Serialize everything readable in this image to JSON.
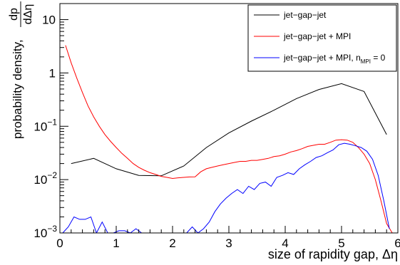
{
  "chart_data": {
    "type": "line",
    "xlabel": "size of rapidity gap, Δη",
    "ylabel_text": "probability density,",
    "ylabel_frac": {
      "num": "dp",
      "den": "dΔη"
    },
    "xlim": [
      0,
      6
    ],
    "ylim": [
      0.001,
      20
    ],
    "y_scale": "log",
    "grid": false,
    "legend_position": "top-right",
    "x_ticks": [
      {
        "value": 0,
        "label": "0"
      },
      {
        "value": 1,
        "label": "1"
      },
      {
        "value": 2,
        "label": "2"
      },
      {
        "value": 3,
        "label": "3"
      },
      {
        "value": 4,
        "label": "4"
      },
      {
        "value": 5,
        "label": "5"
      },
      {
        "value": 6,
        "label": "6"
      }
    ],
    "y_ticks": [
      {
        "value": 0.001,
        "base": "10",
        "exp": "−3"
      },
      {
        "value": 0.01,
        "base": "10",
        "exp": "−2"
      },
      {
        "value": 0.1,
        "base": "10",
        "exp": "−1"
      },
      {
        "value": 1,
        "base": "1",
        "exp": ""
      },
      {
        "value": 10,
        "base": "10",
        "exp": ""
      }
    ],
    "series": [
      {
        "name": "jet−gap−jet",
        "color": "#000000",
        "x": [
          0.2,
          0.6,
          1.0,
          1.4,
          1.8,
          2.2,
          2.6,
          3.0,
          3.4,
          3.8,
          4.2,
          4.6,
          5.0,
          5.4,
          5.8
        ],
        "y": [
          0.02,
          0.025,
          0.016,
          0.012,
          0.0118,
          0.018,
          0.04,
          0.075,
          0.125,
          0.2,
          0.33,
          0.49,
          0.63,
          0.45,
          0.07
        ]
      },
      {
        "name": "jet−gap−jet + MPI",
        "color": "#ff0000",
        "x": [
          0.1,
          0.2,
          0.3,
          0.4,
          0.5,
          0.6,
          0.7,
          0.8,
          0.9,
          1.0,
          1.1,
          1.2,
          1.3,
          1.4,
          1.5,
          1.6,
          1.7,
          1.8,
          1.9,
          2.0,
          2.1,
          2.2,
          2.3,
          2.4,
          2.5,
          2.6,
          2.7,
          2.8,
          2.9,
          3.0,
          3.1,
          3.2,
          3.3,
          3.4,
          3.5,
          3.6,
          3.7,
          3.8,
          3.9,
          4.0,
          4.1,
          4.2,
          4.3,
          4.4,
          4.5,
          4.6,
          4.7,
          4.8,
          4.9,
          5.0,
          5.1,
          5.2,
          5.3,
          5.4,
          5.5,
          5.6,
          5.7,
          5.8,
          5.9
        ],
        "y": [
          3.3,
          1.55,
          0.8,
          0.43,
          0.24,
          0.15,
          0.1,
          0.07,
          0.052,
          0.04,
          0.031,
          0.025,
          0.02,
          0.017,
          0.015,
          0.0135,
          0.0125,
          0.0115,
          0.011,
          0.0105,
          0.0108,
          0.011,
          0.0112,
          0.0113,
          0.014,
          0.016,
          0.017,
          0.018,
          0.019,
          0.02,
          0.021,
          0.022,
          0.022,
          0.023,
          0.023,
          0.024,
          0.025,
          0.027,
          0.028,
          0.03,
          0.033,
          0.035,
          0.038,
          0.042,
          0.044,
          0.046,
          0.046,
          0.05,
          0.055,
          0.056,
          0.055,
          0.05,
          0.04,
          0.03,
          0.02,
          0.01,
          0.004,
          0.0015,
          0.001
        ]
      },
      {
        "name": "jet−gap−jet + MPI, n",
        "name_sub": "MPI",
        "name_suffix": " = 0",
        "color": "#0000ff",
        "x": [
          0.05,
          0.15,
          0.25,
          0.35,
          0.45,
          0.55,
          0.65,
          0.75,
          0.85,
          0.95,
          1.05,
          1.15,
          1.25,
          1.35,
          1.45,
          1.55,
          1.65,
          1.75,
          1.85,
          1.95,
          2.05,
          2.15,
          2.25,
          2.35,
          2.45,
          2.55,
          2.65,
          2.75,
          2.85,
          2.95,
          3.05,
          3.15,
          3.25,
          3.35,
          3.45,
          3.55,
          3.65,
          3.75,
          3.85,
          3.95,
          4.05,
          4.15,
          4.25,
          4.35,
          4.45,
          4.55,
          4.65,
          4.75,
          4.85,
          4.95,
          5.05,
          5.15,
          5.25,
          5.35,
          5.45,
          5.55,
          5.65,
          5.75,
          5.85
        ],
        "y": [
          0.001,
          0.0013,
          0.002,
          0.0018,
          0.0018,
          0.002,
          0.001,
          0.0016,
          0.001,
          0.001,
          0.0011,
          0.0011,
          0.001,
          0.0012,
          0.001,
          0.001,
          0.001,
          0.001,
          0.001,
          0.001,
          0.001,
          0.001,
          0.001,
          0.0013,
          0.001,
          0.0012,
          0.0016,
          0.0025,
          0.0035,
          0.0045,
          0.0055,
          0.0065,
          0.0055,
          0.0075,
          0.0065,
          0.0085,
          0.009,
          0.0075,
          0.011,
          0.012,
          0.0135,
          0.0125,
          0.016,
          0.019,
          0.022,
          0.026,
          0.028,
          0.032,
          0.036,
          0.045,
          0.048,
          0.046,
          0.043,
          0.04,
          0.034,
          0.024,
          0.012,
          0.004,
          0.0012
        ]
      }
    ]
  }
}
